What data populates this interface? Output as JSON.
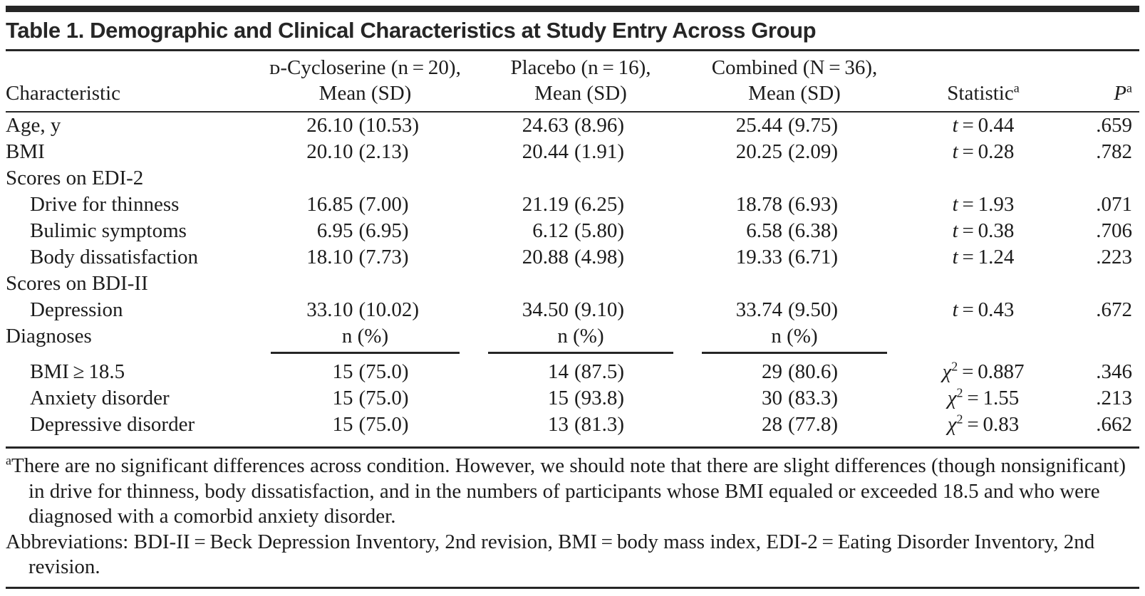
{
  "table": {
    "title": "Table 1. Demographic and Clinical Characteristics at Study Entry Across Group",
    "columns": {
      "characteristic": "Characteristic",
      "groups": [
        {
          "line1": "ᴅ-Cycloserine (n = 20),",
          "line2": "Mean (SD)"
        },
        {
          "line1": "Placebo (n = 16),",
          "line2": "Mean (SD)"
        },
        {
          "line1": "Combined (N = 36),",
          "line2": "Mean (SD)"
        }
      ],
      "statistic": {
        "label": "Statistic",
        "sup": "a"
      },
      "p": {
        "label": "P",
        "sup": "a"
      }
    },
    "rows": [
      {
        "type": "data",
        "label": "Age, y",
        "indent": 0,
        "values": [
          [
            "26.10",
            "(10.53)"
          ],
          [
            "24.63",
            "(8.96)"
          ],
          [
            "25.44",
            "(9.75)"
          ]
        ],
        "stat": {
          "sym": "t",
          "sup": "",
          "val": "0.44"
        },
        "p": ".659"
      },
      {
        "type": "data",
        "label": "BMI",
        "indent": 0,
        "values": [
          [
            "20.10",
            "(2.13)"
          ],
          [
            "20.44",
            "(1.91)"
          ],
          [
            "20.25",
            "(2.09)"
          ]
        ],
        "stat": {
          "sym": "t",
          "sup": "",
          "val": "0.28"
        },
        "p": ".782"
      },
      {
        "type": "section",
        "label": "Scores on EDI-2"
      },
      {
        "type": "data",
        "label": "Drive for thinness",
        "indent": 1,
        "values": [
          [
            "16.85",
            "(7.00)"
          ],
          [
            "21.19",
            "(6.25)"
          ],
          [
            "18.78",
            "(6.93)"
          ]
        ],
        "stat": {
          "sym": "t",
          "sup": "",
          "val": "1.93"
        },
        "p": ".071"
      },
      {
        "type": "data",
        "label": "Bulimic symptoms",
        "indent": 1,
        "values": [
          [
            "6.95",
            "(6.95)"
          ],
          [
            "6.12",
            "(5.80)"
          ],
          [
            "6.58",
            "(6.38)"
          ]
        ],
        "stat": {
          "sym": "t",
          "sup": "",
          "val": "0.38"
        },
        "p": ".706"
      },
      {
        "type": "data",
        "label": "Body dissatisfaction",
        "indent": 1,
        "values": [
          [
            "18.10",
            "(7.73)"
          ],
          [
            "20.88",
            "(4.98)"
          ],
          [
            "19.33",
            "(6.71)"
          ]
        ],
        "stat": {
          "sym": "t",
          "sup": "",
          "val": "1.24"
        },
        "p": ".223"
      },
      {
        "type": "section",
        "label": "Scores on BDI-II"
      },
      {
        "type": "data",
        "label": "Depression",
        "indent": 1,
        "values": [
          [
            "33.10",
            "(10.02)"
          ],
          [
            "34.50",
            "(9.10)"
          ],
          [
            "33.74",
            "(9.50)"
          ]
        ],
        "stat": {
          "sym": "t",
          "sup": "",
          "val": "0.43"
        },
        "p": ".672"
      },
      {
        "type": "subheader",
        "label": "Diagnoses",
        "sub": "n (%)"
      },
      {
        "type": "data",
        "label": "BMI ≥ 18.5",
        "indent": 1,
        "values": [
          [
            "15",
            "(75.0)"
          ],
          [
            "14",
            "(87.5)"
          ],
          [
            "29",
            "(80.6)"
          ]
        ],
        "stat": {
          "sym": "χ",
          "sup": "2",
          "val": "0.887"
        },
        "p": ".346"
      },
      {
        "type": "data",
        "label": "Anxiety disorder",
        "indent": 1,
        "values": [
          [
            "15",
            "(75.0)"
          ],
          [
            "15",
            "(93.8)"
          ],
          [
            "30",
            "(83.3)"
          ]
        ],
        "stat": {
          "sym": "χ",
          "sup": "2",
          "val": "1.55"
        },
        "p": ".213"
      },
      {
        "type": "data",
        "label": "Depressive disorder",
        "indent": 1,
        "values": [
          [
            "15",
            "(75.0)"
          ],
          [
            "13",
            "(81.3)"
          ],
          [
            "28",
            "(77.8)"
          ]
        ],
        "stat": {
          "sym": "χ",
          "sup": "2",
          "val": "0.83"
        },
        "p": ".662"
      }
    ],
    "footnotes": [
      {
        "sup": "a",
        "text": "There are no significant differences across condition. However, we should note that there are slight differences (though nonsignificant) in drive for thinness, body dissatisfaction, and in the numbers of participants whose BMI equaled or exceeded 18.5 and who were diagnosed with a comorbid anxiety disorder."
      },
      {
        "sup": "",
        "text": "Abbreviations: BDI-II = Beck Depression Inventory, 2nd revision, BMI = body mass index, EDI-2 = Eating Disorder Inventory, 2nd revision."
      }
    ]
  }
}
